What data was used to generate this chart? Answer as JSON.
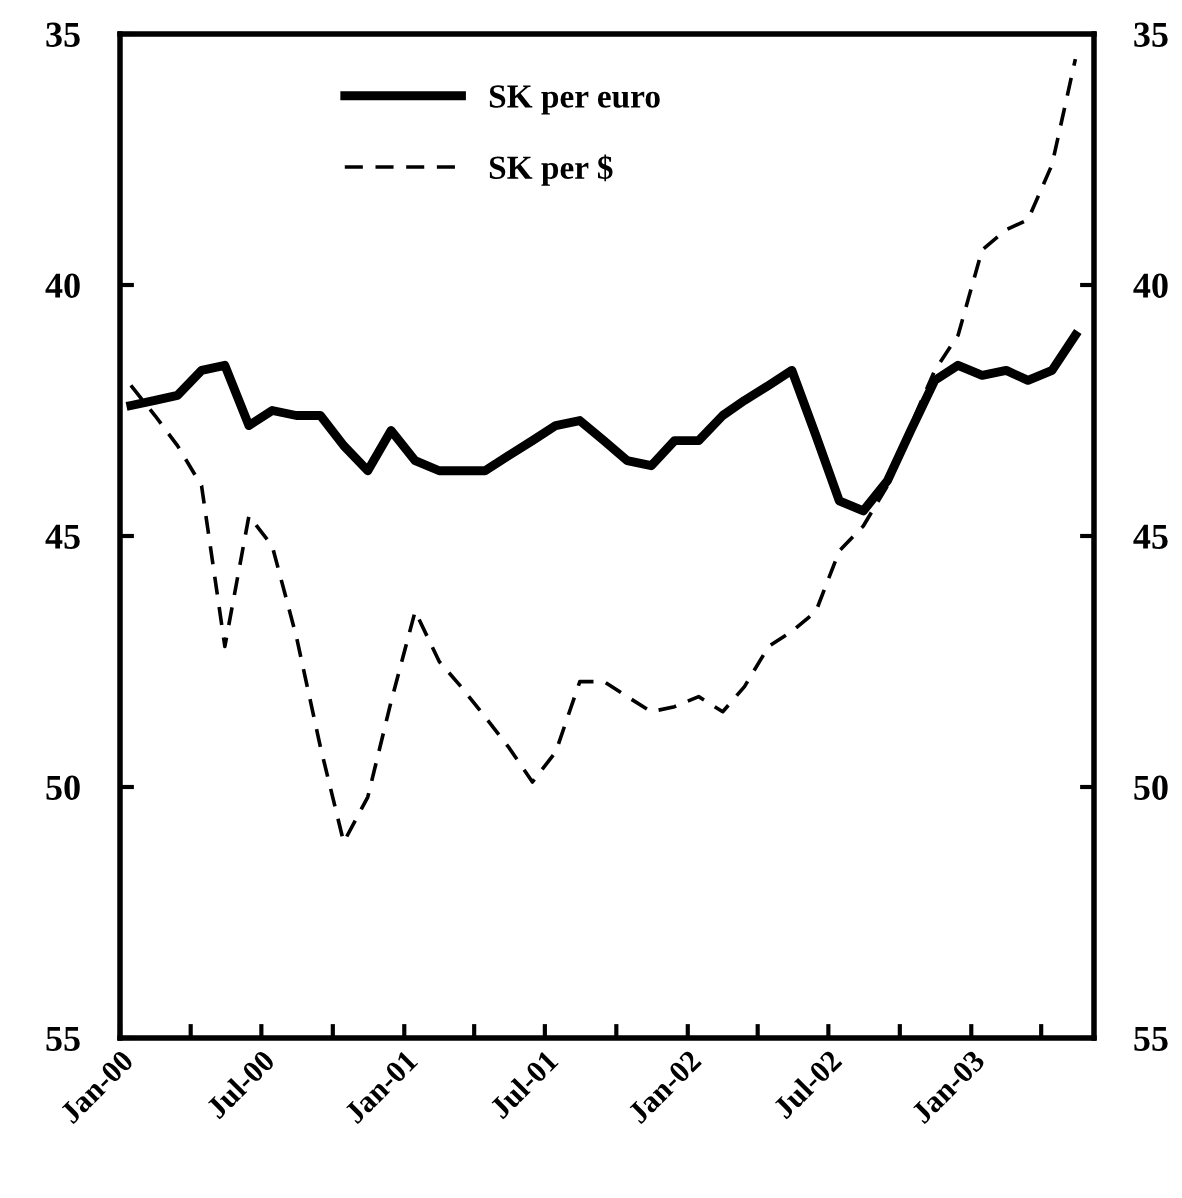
{
  "chart_data": {
    "type": "line",
    "x": [
      "2000-01-15",
      "2000-02-15",
      "2000-03-15",
      "2000-04-15",
      "2000-05-15",
      "2000-06-15",
      "2000-07-15",
      "2000-08-15",
      "2000-09-15",
      "2000-10-15",
      "2000-11-15",
      "2000-12-15",
      "2001-01-15",
      "2001-02-15",
      "2001-03-15",
      "2001-04-15",
      "2001-05-15",
      "2001-06-15",
      "2001-07-15",
      "2001-08-15",
      "2001-09-15",
      "2001-10-15",
      "2001-11-15",
      "2001-12-15",
      "2002-01-15",
      "2002-02-15",
      "2002-03-15",
      "2002-04-15",
      "2002-05-15",
      "2002-06-15",
      "2002-07-15",
      "2002-08-15",
      "2002-09-15",
      "2002-10-15",
      "2002-11-15",
      "2002-12-15",
      "2003-01-15",
      "2003-02-15",
      "2003-03-15",
      "2003-04-15",
      "2003-05-15"
    ],
    "series": [
      {
        "name": "SK per euro",
        "color": "#000000",
        "line_style": "solid",
        "values": [
          42.4,
          42.3,
          42.2,
          41.7,
          41.6,
          42.8,
          42.5,
          42.6,
          42.6,
          43.2,
          43.7,
          42.9,
          43.5,
          43.7,
          43.7,
          43.7,
          43.4,
          43.1,
          42.8,
          42.7,
          43.1,
          43.5,
          43.6,
          43.1,
          43.1,
          42.6,
          42.3,
          42.0,
          41.7,
          43.0,
          44.3,
          44.5,
          43.9,
          42.9,
          41.9,
          41.6,
          41.8,
          41.7,
          41.9,
          41.7,
          41.0
        ]
      },
      {
        "name": "SK per $",
        "color": "#000000",
        "line_style": "dashed",
        "values": [
          42.0,
          42.6,
          43.2,
          44.0,
          47.2,
          44.6,
          45.2,
          47.0,
          49.2,
          51.1,
          50.2,
          48.3,
          46.5,
          47.5,
          48.0,
          48.6,
          49.2,
          49.9,
          49.3,
          47.9,
          47.9,
          48.2,
          48.5,
          48.4,
          48.2,
          48.5,
          48.0,
          47.2,
          46.9,
          46.5,
          45.3,
          44.8,
          44.0,
          42.8,
          41.7,
          41.0,
          39.3,
          38.9,
          38.7,
          37.6,
          35.5
        ]
      }
    ],
    "xlim": [
      "2000-01-01",
      "2003-06-08"
    ],
    "xticks": [
      {
        "value": "2000-01-01",
        "label": "Jan-00"
      },
      {
        "value": "2000-04-01",
        "label": null
      },
      {
        "value": "2000-07-01",
        "label": "Jul-00"
      },
      {
        "value": "2000-10-01",
        "label": null
      },
      {
        "value": "2001-01-01",
        "label": "Jan-01"
      },
      {
        "value": "2001-04-01",
        "label": null
      },
      {
        "value": "2001-07-01",
        "label": "Jul-01"
      },
      {
        "value": "2001-10-01",
        "label": null
      },
      {
        "value": "2002-01-01",
        "label": "Jan-02"
      },
      {
        "value": "2002-04-01",
        "label": null
      },
      {
        "value": "2002-07-01",
        "label": "Jul-02"
      },
      {
        "value": "2002-10-01",
        "label": null
      },
      {
        "value": "2003-01-01",
        "label": "Jan-03"
      },
      {
        "value": "2003-04-01",
        "label": null
      }
    ],
    "ylim": [
      55,
      35
    ],
    "yticks": [
      35,
      40,
      45,
      50,
      55
    ],
    "y2lim": [
      55,
      35
    ],
    "y2ticks": [
      35,
      40,
      45,
      50,
      55
    ],
    "grid": false,
    "legend": "top left"
  }
}
